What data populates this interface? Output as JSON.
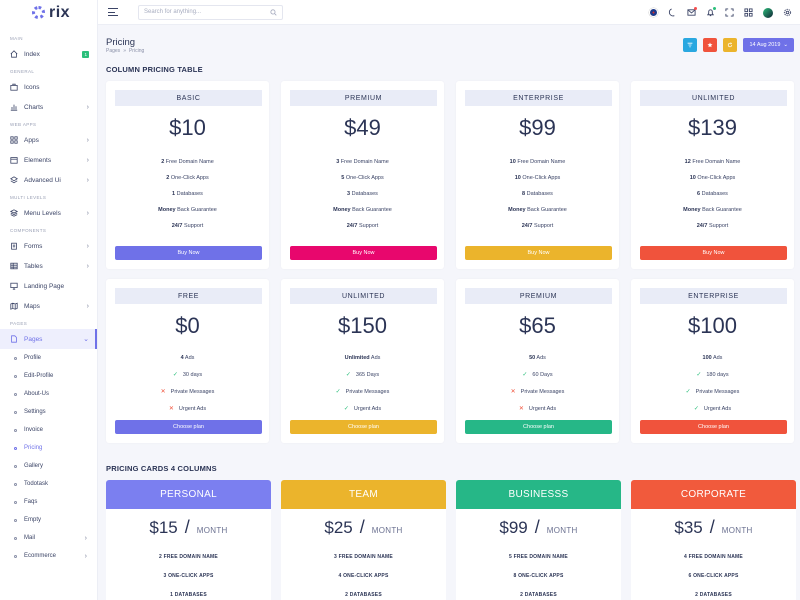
{
  "brand": {
    "name": "rix"
  },
  "sidebar": {
    "sections": {
      "main": "Main",
      "general": "General",
      "web_apps": "Web Apps",
      "multi_levels": "Multi Levels",
      "components": "Components",
      "pages": "Pages"
    },
    "items": {
      "index": {
        "label": "Index",
        "badge": "1"
      },
      "icons": {
        "label": "Icons"
      },
      "charts": {
        "label": "Charts"
      },
      "apps": {
        "label": "Apps"
      },
      "elements": {
        "label": "Elements"
      },
      "advanced_ui": {
        "label": "Advanced Ui"
      },
      "menu_levels": {
        "label": "Menu Levels"
      },
      "forms": {
        "label": "Forms"
      },
      "tables": {
        "label": "Tables"
      },
      "landing_page": {
        "label": "Landing Page"
      },
      "maps": {
        "label": "Maps"
      },
      "pages": {
        "label": "Pages"
      }
    },
    "sub_items": [
      "Profile",
      "Edit-Profile",
      "About-Us",
      "Settings",
      "Invoice",
      "Pricing",
      "Gallery",
      "Todotask",
      "Faqs",
      "Empty"
    ],
    "after_items": {
      "mail": {
        "label": "Mail"
      },
      "ecommerce": {
        "label": "Ecommerce"
      }
    }
  },
  "header": {
    "search_placeholder": "Search for anything..."
  },
  "page": {
    "title": "Pricing",
    "breadcrumb": [
      "Pages",
      "Pricing"
    ],
    "date_button": "14 Aug 2019"
  },
  "column_section": {
    "title": "COLUMN PRICING TABLE",
    "row1": [
      {
        "plan": "BASIC",
        "price": "$10",
        "features": [
          {
            "n": "2",
            "t": " Free Domain Name"
          },
          {
            "n": "2",
            "t": " One-Click Apps"
          },
          {
            "n": "1",
            "t": " Databases"
          },
          {
            "n": "Money",
            "t": " Back Guarantee"
          },
          {
            "n": "24/7",
            "t": " Support"
          }
        ],
        "button": "Buy Now",
        "color": "#6f71e8"
      },
      {
        "plan": "PREMIUM",
        "price": "$49",
        "features": [
          {
            "n": "3",
            "t": " Free Domain Name"
          },
          {
            "n": "5",
            "t": " One-Click Apps"
          },
          {
            "n": "3",
            "t": " Databases"
          },
          {
            "n": "Money",
            "t": " Back Guarantee"
          },
          {
            "n": "24/7",
            "t": " Support"
          }
        ],
        "button": "Buy Now",
        "color": "#e8076d"
      },
      {
        "plan": "ENTERPRISE",
        "price": "$99",
        "features": [
          {
            "n": "10",
            "t": " Free Domain Name"
          },
          {
            "n": "10",
            "t": " One-Click Apps"
          },
          {
            "n": "8",
            "t": " Databases"
          },
          {
            "n": "Money",
            "t": " Back Guarantee"
          },
          {
            "n": "24/7",
            "t": " Support"
          }
        ],
        "button": "Buy Now",
        "color": "#ebb42c"
      },
      {
        "plan": "UNLIMITED",
        "price": "$139",
        "features": [
          {
            "n": "12",
            "t": " Free Domain Name"
          },
          {
            "n": "10",
            "t": " One-Click Apps"
          },
          {
            "n": "6",
            "t": " Databases"
          },
          {
            "n": "Money",
            "t": " Back Guarantee"
          },
          {
            "n": "24/7",
            "t": " Support"
          }
        ],
        "button": "Buy Now",
        "color": "#f0533c"
      }
    ],
    "row2": [
      {
        "plan": "FREE",
        "price": "$0",
        "ads": {
          "n": "4",
          "t": " Ads"
        },
        "checks": [
          {
            "ok": true,
            "t": "30 days"
          },
          {
            "ok": false,
            "t": "Private Messages"
          },
          {
            "ok": false,
            "t": "Urgent Ads"
          }
        ],
        "button": "Choose plan",
        "color": "#6f71e8"
      },
      {
        "plan": "UNLIMITED",
        "price": "$150",
        "ads": {
          "n": "Unlimited",
          "t": " Ads"
        },
        "checks": [
          {
            "ok": true,
            "t": "365 Days"
          },
          {
            "ok": true,
            "t": "Private Messages"
          },
          {
            "ok": true,
            "t": "Urgent Ads"
          }
        ],
        "button": "Choose plan",
        "color": "#ebb42c"
      },
      {
        "plan": "PREMIUM",
        "price": "$65",
        "ads": {
          "n": "50",
          "t": " Ads"
        },
        "checks": [
          {
            "ok": true,
            "t": "60 Days"
          },
          {
            "ok": false,
            "t": "Private Messages"
          },
          {
            "ok": false,
            "t": "Urgent Ads"
          }
        ],
        "button": "Choose plan",
        "color": "#26b787"
      },
      {
        "plan": "ENTERPRISE",
        "price": "$100",
        "ads": {
          "n": "100",
          "t": " Ads"
        },
        "checks": [
          {
            "ok": true,
            "t": "180 days"
          },
          {
            "ok": true,
            "t": "Private Messages"
          },
          {
            "ok": true,
            "t": "Urgent Ads"
          }
        ],
        "button": "Choose plan",
        "color": "#f0533c"
      }
    ]
  },
  "cards_section": {
    "title": "PRICING CARDS 4 COLUMNS",
    "cards": [
      {
        "name": "PERSONAL",
        "price": "$15",
        "per": "MONTH",
        "color": "#7b7ff0",
        "features": [
          "2 FREE DOMAIN NAME",
          "3 ONE-CLICK APPS",
          "1 DATABASES"
        ]
      },
      {
        "name": "TEAM",
        "price": "$25",
        "per": "MONTH",
        "color": "#ebb42c",
        "features": [
          "3 FREE DOMAIN NAME",
          "4 ONE-CLICK APPS",
          "2 DATABASES"
        ]
      },
      {
        "name": "BUSINESSS",
        "price": "$99",
        "per": "MONTH",
        "color": "#26b787",
        "features": [
          "5 FREE DOMAIN NAME",
          "8 ONE-CLICK APPS",
          "2 DATABASES"
        ]
      },
      {
        "name": "CORPORATE",
        "price": "$35",
        "per": "MONTH",
        "color": "#f15a3c",
        "features": [
          "4 FREE DOMAIN NAME",
          "6 ONE-CLICK APPS",
          "2 DATABASES"
        ]
      }
    ]
  },
  "colors": {
    "accent": "#6f71e8",
    "filter_btn": "#2aa8e0",
    "star_btn": "#f0533c",
    "refresh_btn": "#ebb42c"
  }
}
